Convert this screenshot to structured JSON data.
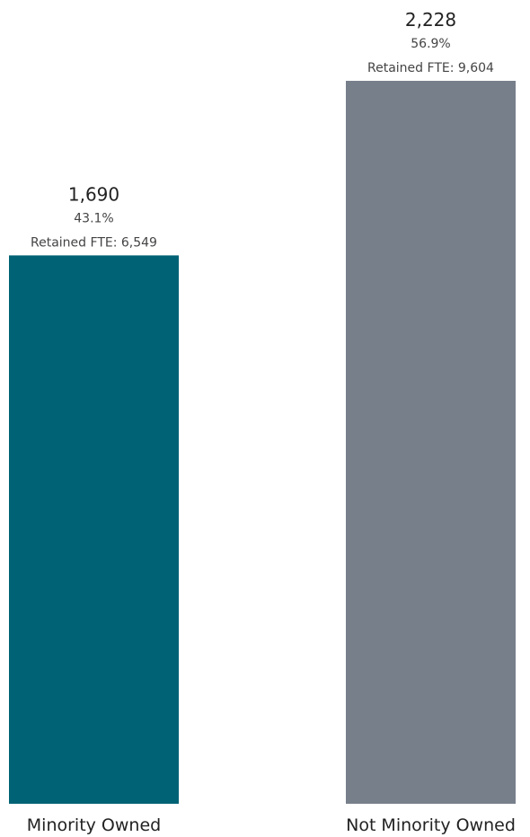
{
  "chart_data": {
    "type": "bar",
    "categories": [
      "Minority Owned",
      "Not Minority Owned"
    ],
    "values": [
      1690,
      2228
    ],
    "value_labels": [
      "1,690",
      "2,228"
    ],
    "percent_labels": [
      "43.1%",
      "56.9%"
    ],
    "fte_labels": [
      "Retained FTE: 6,549",
      "Retained FTE: 9,604"
    ],
    "colors": [
      "#006275",
      "#777f8b"
    ],
    "title": "",
    "xlabel": "",
    "ylabel": "",
    "ylim": [
      0,
      2228
    ],
    "grid": false,
    "legend": "none"
  }
}
